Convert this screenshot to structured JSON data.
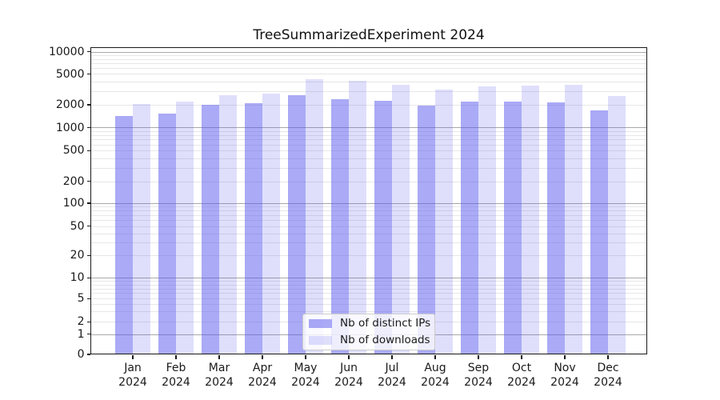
{
  "chart_data": {
    "type": "bar",
    "title": "TreeSummarizedExperiment 2024",
    "year_label": "2024",
    "categories": [
      "Jan",
      "Feb",
      "Mar",
      "Apr",
      "May",
      "Jun",
      "Jul",
      "Aug",
      "Sep",
      "Oct",
      "Nov",
      "Dec"
    ],
    "series": [
      {
        "name": "Nb of distinct IPs",
        "color": "#5656ee",
        "alpha": 0.5,
        "values": [
          1420,
          1530,
          2000,
          2100,
          2650,
          2350,
          2260,
          1960,
          2180,
          2180,
          2130,
          1680
        ]
      },
      {
        "name": "Nb of downloads",
        "color": "#5656ee",
        "alpha": 0.19,
        "values": [
          2050,
          2210,
          2680,
          2760,
          4280,
          4100,
          3630,
          3130,
          3420,
          3500,
          3590,
          2610
        ]
      }
    ],
    "y_ticks": [
      0,
      1,
      2,
      5,
      10,
      20,
      50,
      100,
      200,
      500,
      1000,
      2000,
      5000,
      10000
    ],
    "y_scale": "asinh-log",
    "ylim": [
      0,
      11500
    ],
    "grid": true,
    "legend_position": "lower-center",
    "gridline_major_color": "#a9a9a9",
    "gridline_minor_color": "#e7e7e7",
    "axis_color": "#1a1a1a"
  }
}
